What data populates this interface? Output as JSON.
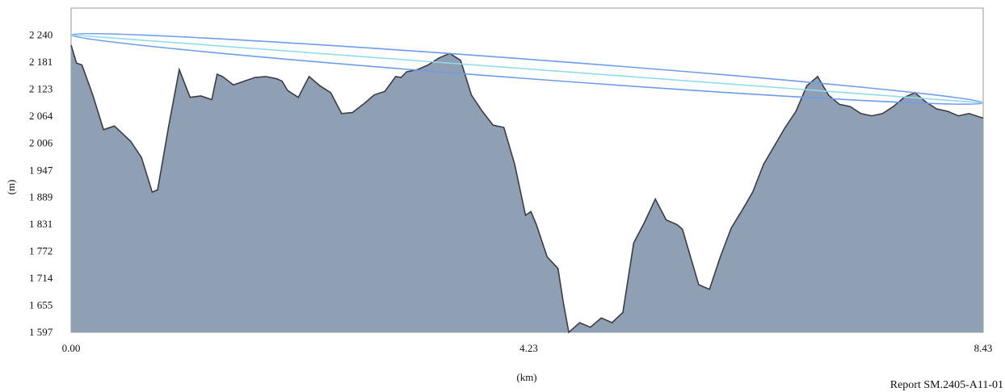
{
  "chart_data": {
    "type": "area",
    "title": "",
    "xlabel": "(km)",
    "ylabel": "(m)",
    "xlim": [
      0,
      8.43
    ],
    "ylim": [
      1597,
      2298
    ],
    "x_tick_labels": [
      "0.00",
      "4.23",
      "8.43"
    ],
    "x_tick_values": [
      0,
      4.23,
      8.43
    ],
    "y_tick_labels": [
      "1 597",
      "1 655",
      "1 714",
      "1 772",
      "1 831",
      "1 889",
      "1 947",
      "2 006",
      "2 064",
      "2 123",
      "2 181",
      "2 240"
    ],
    "y_tick_values": [
      1597,
      1655,
      1714,
      1772,
      1831,
      1889,
      1947,
      2006,
      2064,
      2123,
      2181,
      2240
    ],
    "grid": false,
    "colors": {
      "terrain_fill": "#8f9fb4",
      "terrain_line": "#3c3c44",
      "fresnel_ellipse": "#6f9be8",
      "line_of_sight": "#92dcea"
    },
    "series": [
      {
        "values_x": [
          0,
          0.05,
          0.1,
          0.2,
          0.3,
          0.4,
          0.55,
          0.65,
          0.75,
          0.8,
          0.9,
          1.0,
          1.1,
          1.2,
          1.3,
          1.35,
          1.4,
          1.5,
          1.6,
          1.7,
          1.8,
          1.9,
          1.95,
          2.0,
          2.1,
          2.2,
          2.3,
          2.4,
          2.5,
          2.6,
          2.7,
          2.8,
          2.9,
          3.0,
          3.05,
          3.1,
          3.2,
          3.3,
          3.4,
          3.5,
          3.6,
          3.7,
          3.8,
          3.9,
          4.0,
          4.1,
          4.2,
          4.25,
          4.3,
          4.35,
          4.4,
          4.5,
          4.55,
          4.6,
          4.7,
          4.8,
          4.9,
          5.0,
          5.1,
          5.2,
          5.3,
          5.4,
          5.5,
          5.6,
          5.65,
          5.7,
          5.8,
          5.9,
          6.0,
          6.1,
          6.2,
          6.3,
          6.4,
          6.5,
          6.6,
          6.7,
          6.8,
          6.9,
          7.0,
          7.1,
          7.2,
          7.3,
          7.4,
          7.5,
          7.6,
          7.7,
          7.8,
          7.9,
          8.0,
          8.1,
          8.2,
          8.3,
          8.43
        ],
        "values_y": [
          2218,
          2179,
          2175,
          2110,
          2035,
          2043,
          2010,
          1975,
          1900,
          1905,
          2040,
          2165,
          2105,
          2108,
          2100,
          2155,
          2150,
          2132,
          2140,
          2148,
          2150,
          2145,
          2140,
          2120,
          2105,
          2150,
          2130,
          2115,
          2070,
          2072,
          2090,
          2110,
          2118,
          2150,
          2148,
          2160,
          2165,
          2175,
          2190,
          2200,
          2185,
          2110,
          2075,
          2045,
          2040,
          1960,
          1850,
          1858,
          1830,
          1795,
          1760,
          1735,
          1660,
          1597,
          1618,
          1608,
          1628,
          1618,
          1640,
          1790,
          1835,
          1885,
          1840,
          1830,
          1820,
          1780,
          1700,
          1690,
          1760,
          1822,
          1860,
          1900,
          1960,
          2000,
          2040,
          2075,
          2130,
          2150,
          2110,
          2090,
          2085,
          2070,
          2065,
          2070,
          2085,
          2105,
          2115,
          2095,
          2080,
          2075,
          2065,
          2070,
          2060
        ]
      }
    ],
    "link": {
      "start": [
        0,
        2240
      ],
      "end": [
        8.43,
        2093
      ]
    },
    "annotation": "Report SM.2405-A11-01"
  }
}
